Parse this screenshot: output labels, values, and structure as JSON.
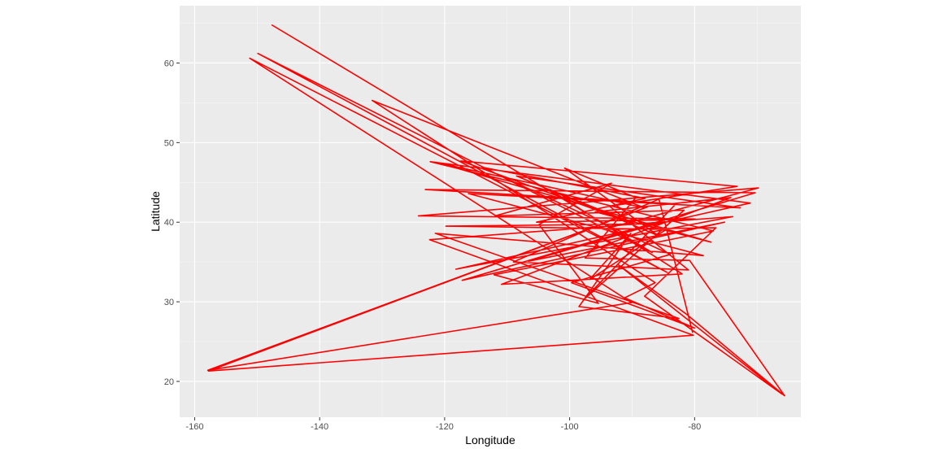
{
  "chart_data": {
    "type": "line",
    "title": "",
    "xlabel": "Longitude",
    "ylabel": "Latitude",
    "xlim": [
      -162.4,
      -63.0
    ],
    "ylim": [
      15.5,
      67.2
    ],
    "x_ticks": [
      -160,
      -140,
      -120,
      -100,
      -80
    ],
    "x_tick_labels": [
      "-160",
      "-140",
      "-120",
      "-100",
      "-80"
    ],
    "y_ticks": [
      20,
      30,
      40,
      50,
      60
    ],
    "y_tick_labels": [
      "20",
      "30",
      "40",
      "50",
      "60"
    ],
    "grid": true,
    "legend": "none",
    "background_color": "#ebebeb",
    "line_color": "#ff0000",
    "series": [
      {
        "values_note": "path of a single continuous line connecting US location coordinates",
        "points": [
          [
            -147.7,
            64.8
          ],
          [
            -86.8,
            36.2
          ],
          [
            -149.9,
            61.2
          ],
          [
            -84.4,
            33.7
          ],
          [
            -151.2,
            60.6
          ],
          [
            -90.1,
            29.9
          ],
          [
            -157.9,
            21.4
          ],
          [
            -87.6,
            41.9
          ],
          [
            -157.8,
            21.3
          ],
          [
            -80.2,
            25.8
          ],
          [
            -122.4,
            37.8
          ],
          [
            -73.9,
            40.7
          ],
          [
            -118.2,
            34.1
          ],
          [
            -71.1,
            42.4
          ],
          [
            -122.3,
            47.6
          ],
          [
            -77.0,
            38.9
          ],
          [
            -112.1,
            33.4
          ],
          [
            -95.4,
            29.8
          ],
          [
            -104.9,
            39.7
          ],
          [
            -93.3,
            44.9
          ],
          [
            -111.9,
            40.8
          ],
          [
            -81.7,
            41.5
          ],
          [
            -97.7,
            30.3
          ],
          [
            -83.0,
            42.3
          ],
          [
            -123.1,
            44.1
          ],
          [
            -70.3,
            43.7
          ],
          [
            -117.2,
            32.7
          ],
          [
            -75.2,
            40.0
          ],
          [
            -106.6,
            35.1
          ],
          [
            -86.2,
            39.8
          ],
          [
            -119.8,
            39.5
          ],
          [
            -84.5,
            39.1
          ],
          [
            -96.8,
            32.8
          ],
          [
            -90.2,
            38.6
          ],
          [
            -98.5,
            29.4
          ],
          [
            -82.5,
            27.9
          ],
          [
            -121.5,
            38.6
          ],
          [
            -78.6,
            35.8
          ],
          [
            -116.2,
            43.6
          ],
          [
            -72.7,
            41.8
          ],
          [
            -108.5,
            45.8
          ],
          [
            -85.8,
            38.3
          ],
          [
            -100.8,
            46.8
          ],
          [
            -89.4,
            43.1
          ],
          [
            -97.5,
            35.5
          ],
          [
            -80.8,
            35.2
          ],
          [
            -65.6,
            18.2
          ],
          [
            -81.4,
            28.5
          ],
          [
            -92.3,
            34.7
          ],
          [
            -66.0,
            18.4
          ],
          [
            -88.0,
            30.7
          ],
          [
            -76.6,
            39.3
          ],
          [
            -94.6,
            39.1
          ],
          [
            -69.8,
            44.3
          ],
          [
            -124.2,
            40.8
          ],
          [
            -79.9,
            40.4
          ],
          [
            -105.3,
            40.0
          ],
          [
            -87.9,
            43.0
          ],
          [
            -114.0,
            46.9
          ],
          [
            -83.9,
            35.96
          ],
          [
            -99.7,
            32.4
          ],
          [
            -80.0,
            26.7
          ],
          [
            -91.2,
            30.5
          ],
          [
            -86.3,
            32.4
          ],
          [
            -131.6,
            55.3
          ],
          [
            -88.0,
            41.8
          ],
          [
            -120.7,
            47.4
          ],
          [
            -77.4,
            37.5
          ],
          [
            -95.9,
            41.3
          ],
          [
            -74.2,
            43.1
          ],
          [
            -110.9,
            32.2
          ],
          [
            -82.0,
            33.5
          ],
          [
            -103.2,
            44.1
          ],
          [
            -89.6,
            39.8
          ],
          [
            -117.4,
            47.7
          ],
          [
            -73.2,
            44.5
          ],
          [
            -93.6,
            42.0
          ],
          [
            -81.0,
            34.0
          ],
          [
            -109.0,
            35.0
          ],
          [
            -85.7,
            42.9
          ],
          [
            -80.3,
            26.1
          ]
        ]
      }
    ]
  }
}
